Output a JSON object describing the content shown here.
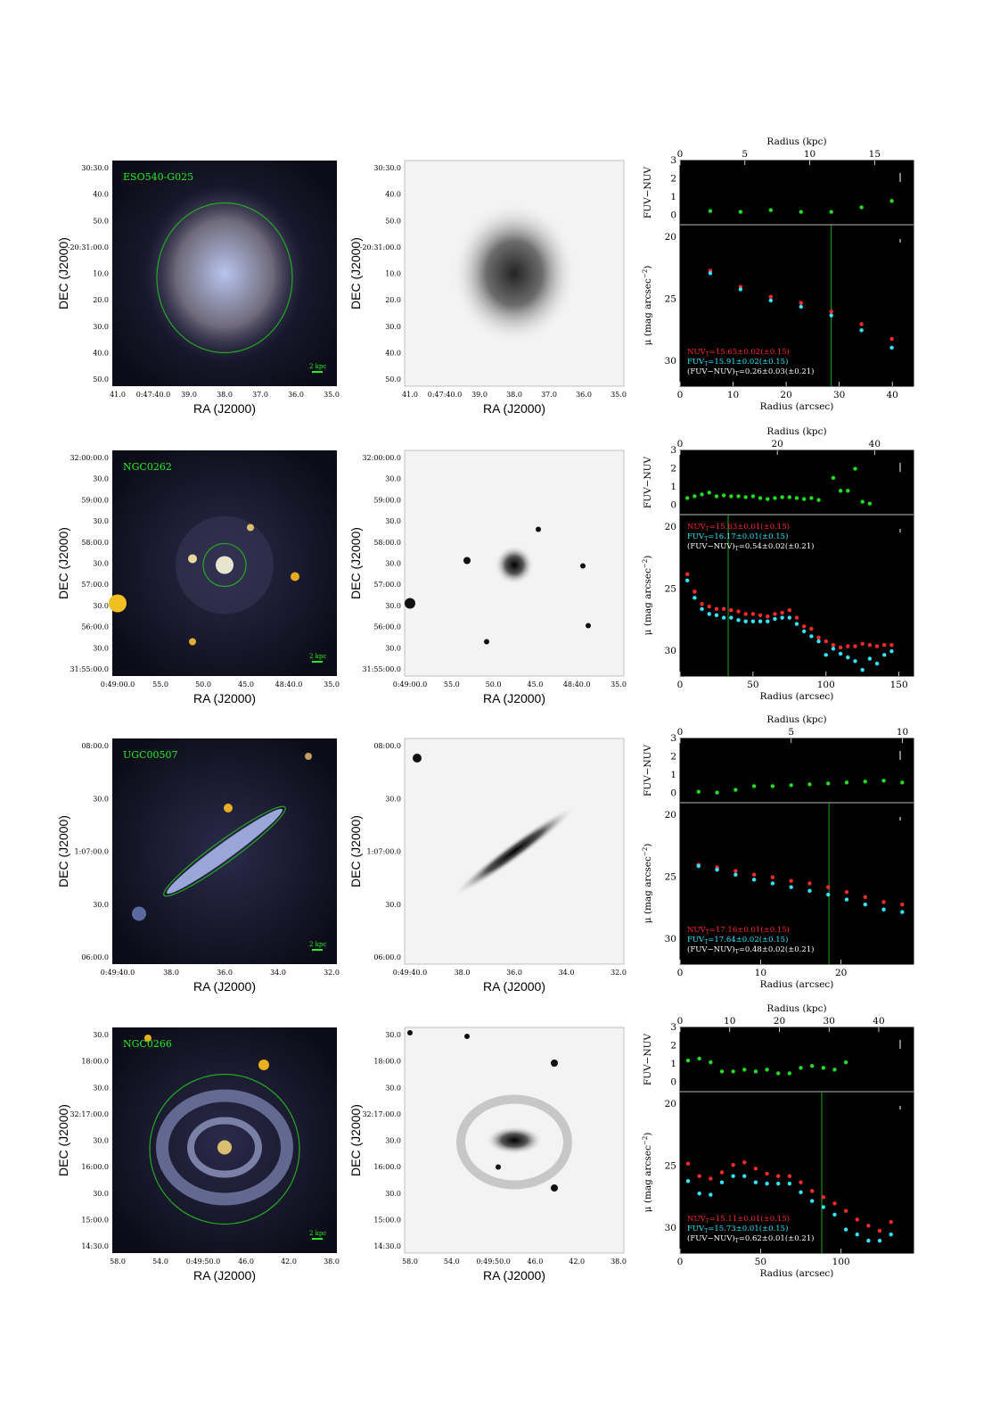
{
  "figure_axes": {
    "ra_label": "RA (J2000)",
    "dec_label": "DEC (J2000)",
    "radius_kpc_label": "Radius (kpc)",
    "radius_arcsec_label": "Radius (arcsec)",
    "color_label": "FUV−NUV",
    "mu_label_main": "μ (mag arcsec",
    "mu_label_sup": "−2",
    "mu_label_close": ")"
  },
  "colors": {
    "nuv": "#ff2a2a",
    "fuv": "#33e6ff",
    "color_pts": "#22dd22",
    "marker": "#22aa22",
    "galaxy_label": "#22ee22"
  },
  "icons": [
    "galaxy-image",
    "scale-bar-icon",
    "aperture-ellipse-icon"
  ],
  "galaxies": [
    {
      "name": "ESO540-G025",
      "scale_label": "2 kpc",
      "image_style": "spiral-faint",
      "ra_ticks": [
        "41.0",
        "0:47:40.0",
        "39.0",
        "38.0",
        "37.0",
        "36.0",
        "35.0"
      ],
      "dec_ticks": [
        "30:30.0",
        "40.0",
        "50.0",
        "-20:31:00.0",
        "10.0",
        "20.0",
        "30.0",
        "40.0",
        "50.0"
      ],
      "mono_dec_ticks": [
        "30:30.0",
        "40.0",
        "50.0",
        "-20:31:00.0",
        "10.0",
        "20.0",
        "30.0",
        "40.0",
        "50.0"
      ],
      "kpc_ticks": [
        "0",
        "5",
        "10",
        "15"
      ],
      "kpc_max": 18,
      "arcsec_ticks": [
        "0",
        "10",
        "20",
        "30",
        "40"
      ],
      "arcsec_max": 44,
      "color_ticks": [
        "0",
        "1",
        "2",
        "3"
      ],
      "mu_ticks": [
        "20",
        "25",
        "30"
      ],
      "marker_arcsec": 28.5,
      "legend": {
        "nuv_main": "NUV",
        "nuv_sub": "T",
        "nuv_val": "=15.65±0.02(±0.15)",
        "fuv_main": "FUV",
        "fuv_sub": "T",
        "fuv_val": "=15.91±0.02(±0.15)",
        "col_main": "(FUV−NUV)",
        "col_sub": "T",
        "col_val": "=0.26±0.03(±0.21)"
      },
      "chart_data": {
        "type": "scatter",
        "x_label_top": "Radius (kpc)",
        "x_label": "Radius (arcsec)",
        "color_series": {
          "name": "FUV−NUV",
          "x": [
            5.7,
            11.4,
            17.1,
            22.8,
            28.5,
            34.2,
            39.9
          ],
          "y": [
            0.25,
            0.2,
            0.3,
            0.2,
            0.2,
            0.45,
            0.8
          ]
        },
        "nuv_series": {
          "name": "NUV",
          "x": [
            5.7,
            11.4,
            17.1,
            22.8,
            28.5,
            34.2,
            39.9
          ],
          "y": [
            22.7,
            24.0,
            24.8,
            25.3,
            26.0,
            27.0,
            28.2
          ]
        },
        "fuv_series": {
          "name": "FUV",
          "x": [
            5.7,
            11.4,
            17.1,
            22.8,
            28.5,
            34.2,
            39.9
          ],
          "y": [
            22.9,
            24.2,
            25.1,
            25.6,
            26.3,
            27.5,
            28.9
          ]
        },
        "color_ylim": [
          -0.5,
          3
        ],
        "mu_ylim": [
          32,
          19
        ]
      }
    },
    {
      "name": "NGC0262",
      "scale_label": "2 kpc",
      "image_style": "compact-field",
      "ra_ticks": [
        "0:49:00.0",
        "55.0",
        "50.0",
        "45.0",
        "48:40.0",
        "35.0"
      ],
      "dec_ticks": [
        "32:00:00.0",
        "30.0",
        "59:00.0",
        "30.0",
        "58:00.0",
        "30.0",
        "57:00.0",
        "30.0",
        "56:00.0",
        "30.0",
        "31:55:00.0"
      ],
      "mono_dec_ticks": [
        "32:00:00.0",
        "30.0",
        "59:00.0",
        "30.0",
        "58:00.0",
        "30.0",
        "57:00.0",
        "30.0",
        "56:00.0",
        "30.0",
        "31:55:00.0"
      ],
      "kpc_ticks": [
        "0",
        "20",
        "40"
      ],
      "kpc_max": 48,
      "arcsec_ticks": [
        "0",
        "50",
        "100",
        "150"
      ],
      "arcsec_max": 160,
      "color_ticks": [
        "0",
        "1",
        "2",
        "3"
      ],
      "mu_ticks": [
        "20",
        "25",
        "30"
      ],
      "marker_arcsec": 33,
      "legend": {
        "nuv_main": "NUV",
        "nuv_sub": "T",
        "nuv_val": "=15.63±0.01(±0.15)",
        "fuv_main": "FUV",
        "fuv_sub": "T",
        "fuv_val": "=16.17±0.01(±0.15)",
        "col_main": "(FUV−NUV)",
        "col_sub": "T",
        "col_val": "=0.54±0.02(±0.21)"
      },
      "chart_data": {
        "type": "scatter",
        "x_label_top": "Radius (kpc)",
        "x_label": "Radius (arcsec)",
        "color_series": {
          "name": "FUV−NUV",
          "x": [
            5,
            10,
            15,
            20,
            25,
            30,
            35,
            40,
            45,
            50,
            55,
            60,
            65,
            70,
            75,
            80,
            85,
            90,
            95,
            105,
            110,
            115,
            120,
            125,
            130
          ],
          "y": [
            0.4,
            0.5,
            0.6,
            0.7,
            0.5,
            0.55,
            0.5,
            0.5,
            0.45,
            0.5,
            0.4,
            0.35,
            0.4,
            0.45,
            0.45,
            0.4,
            0.35,
            0.4,
            0.3,
            1.5,
            0.8,
            0.8,
            2.0,
            0.2,
            0.1
          ]
        },
        "nuv_series": {
          "name": "NUV",
          "x": [
            5,
            10,
            15,
            20,
            25,
            30,
            35,
            40,
            45,
            50,
            55,
            60,
            65,
            70,
            75,
            80,
            85,
            90,
            95,
            100,
            105,
            110,
            115,
            120,
            125,
            130,
            135,
            140,
            145
          ],
          "y": [
            23.8,
            25.2,
            26.2,
            26.4,
            26.6,
            26.6,
            26.7,
            26.8,
            27.0,
            27.0,
            27.1,
            27.2,
            27.0,
            26.9,
            26.7,
            27.3,
            28.0,
            28.2,
            28.9,
            29.2,
            29.5,
            29.7,
            29.6,
            29.6,
            29.4,
            29.5,
            29.6,
            29.5,
            29.5
          ]
        },
        "fuv_series": {
          "name": "FUV",
          "x": [
            5,
            10,
            15,
            20,
            25,
            30,
            35,
            40,
            45,
            50,
            55,
            60,
            65,
            70,
            75,
            80,
            85,
            90,
            95,
            100,
            105,
            110,
            115,
            120,
            125,
            130,
            135,
            140,
            145
          ],
          "y": [
            24.3,
            25.7,
            26.6,
            27.0,
            27.1,
            27.3,
            27.3,
            27.5,
            27.6,
            27.6,
            27.6,
            27.6,
            27.4,
            27.3,
            27.3,
            27.8,
            28.4,
            28.8,
            29.2,
            30.3,
            29.8,
            30.2,
            30.5,
            30.8,
            31.5,
            30.6,
            31.0,
            30.3,
            30.0
          ]
        },
        "color_ylim": [
          -0.5,
          3
        ],
        "mu_ylim": [
          32,
          19
        ]
      }
    },
    {
      "name": "UGC00507",
      "scale_label": "2 kpc",
      "image_style": "edge-on",
      "ra_ticks": [
        "0:49:40.0",
        "38.0",
        "36.0",
        "34.0",
        "32.0"
      ],
      "dec_ticks": [
        "08:00.0",
        "30.0",
        "1:07:00.0",
        "30.0",
        "06:00.0"
      ],
      "mono_dec_ticks": [
        "08:00.0",
        "30.0",
        "1:07:00.0",
        "30.0",
        "06:00.0"
      ],
      "kpc_ticks": [
        "0",
        "5",
        "10"
      ],
      "kpc_max": 10.5,
      "arcsec_ticks": [
        "0",
        "10",
        "20"
      ],
      "arcsec_max": 29,
      "color_ticks": [
        "0",
        "1",
        "2",
        "3"
      ],
      "mu_ticks": [
        "20",
        "25",
        "30"
      ],
      "marker_arcsec": 18.5,
      "legend": {
        "nuv_main": "NUV",
        "nuv_sub": "T",
        "nuv_val": "=17.16±0.01(±0.15)",
        "fuv_main": "FUV",
        "fuv_sub": "T",
        "fuv_val": "=17.64±0.02(±0.15)",
        "col_main": "(FUV−NUV)",
        "col_sub": "T",
        "col_val": "=0.48±0.02(±0.21)"
      },
      "chart_data": {
        "type": "scatter",
        "x_label_top": "Radius (kpc)",
        "x_label": "Radius (arcsec)",
        "color_series": {
          "name": "FUV−NUV",
          "x": [
            2.3,
            4.6,
            6.9,
            9.2,
            11.5,
            13.8,
            16.1,
            18.4,
            20.7,
            23.0,
            25.3,
            27.6
          ],
          "y": [
            0.1,
            0.05,
            0.2,
            0.4,
            0.4,
            0.45,
            0.5,
            0.55,
            0.6,
            0.65,
            0.7,
            0.6
          ]
        },
        "nuv_series": {
          "name": "NUV",
          "x": [
            2.3,
            4.6,
            6.9,
            9.2,
            11.5,
            13.8,
            16.1,
            18.4,
            20.7,
            23.0,
            25.3,
            27.6
          ],
          "y": [
            24.0,
            24.2,
            24.5,
            24.8,
            25.0,
            25.3,
            25.5,
            25.8,
            26.2,
            26.6,
            27.0,
            27.2
          ]
        },
        "fuv_series": {
          "name": "FUV",
          "x": [
            2.3,
            4.6,
            6.9,
            9.2,
            11.5,
            13.8,
            16.1,
            18.4,
            20.7,
            23.0,
            25.3,
            27.6
          ],
          "y": [
            24.1,
            24.4,
            24.8,
            25.2,
            25.5,
            25.8,
            26.1,
            26.4,
            26.8,
            27.2,
            27.6,
            27.8
          ]
        },
        "color_ylim": [
          -0.5,
          3
        ],
        "mu_ylim": [
          32,
          19
        ]
      }
    },
    {
      "name": "NGC0266",
      "scale_label": "2 kpc",
      "image_style": "grand-spiral",
      "ra_ticks": [
        "58.0",
        "54.0",
        "0:49:50.0",
        "46.0",
        "42.0",
        "38.0"
      ],
      "dec_ticks": [
        "30.0",
        "18:00.0",
        "30.0",
        "32:17:00.0",
        "30.0",
        "16:00.0",
        "30.0",
        "15:00.0",
        "14:30.0"
      ],
      "mono_dec_ticks": [
        "30.0",
        "18:00.0",
        "30.0",
        "32:17:00.0",
        "30.0",
        "16:00.0",
        "30.0",
        "15:00.0",
        "14:30.0"
      ],
      "kpc_ticks": [
        "0",
        "10",
        "20",
        "30",
        "40"
      ],
      "kpc_max": 47,
      "arcsec_ticks": [
        "0",
        "50",
        "100"
      ],
      "arcsec_max": 145,
      "color_ticks": [
        "0",
        "1",
        "2",
        "3"
      ],
      "mu_ticks": [
        "20",
        "25",
        "30"
      ],
      "marker_arcsec": 88,
      "legend": {
        "nuv_main": "NUV",
        "nuv_sub": "T",
        "nuv_val": "=15.11±0.01(±0.15)",
        "fuv_main": "FUV",
        "fuv_sub": "T",
        "fuv_val": "=15.73±0.01(±0.15)",
        "col_main": "(FUV−NUV)",
        "col_sub": "T",
        "col_val": "=0.62±0.01(±0.21)"
      },
      "chart_data": {
        "type": "scatter",
        "x_label_top": "Radius (kpc)",
        "x_label": "Radius (arcsec)",
        "color_series": {
          "name": "FUV−NUV",
          "x": [
            5,
            12,
            19,
            26,
            33,
            40,
            47,
            54,
            61,
            68,
            75,
            82,
            89,
            96,
            103
          ],
          "y": [
            1.2,
            1.3,
            1.1,
            0.6,
            0.6,
            0.7,
            0.6,
            0.7,
            0.5,
            0.5,
            0.8,
            0.9,
            0.8,
            0.7,
            1.1
          ]
        },
        "nuv_series": {
          "name": "NUV",
          "x": [
            5,
            12,
            19,
            26,
            33,
            40,
            47,
            54,
            61,
            68,
            75,
            82,
            89,
            96,
            103,
            110,
            117,
            124,
            131
          ],
          "y": [
            24.8,
            25.8,
            26.0,
            25.5,
            24.9,
            24.7,
            25.2,
            25.6,
            25.8,
            25.8,
            26.3,
            27.0,
            27.5,
            28.0,
            28.6,
            29.3,
            29.8,
            30.2,
            29.5
          ]
        },
        "fuv_series": {
          "name": "FUV",
          "x": [
            5,
            12,
            19,
            26,
            33,
            40,
            47,
            54,
            61,
            68,
            75,
            82,
            89,
            96,
            103,
            110,
            117,
            124,
            131
          ],
          "y": [
            26.2,
            27.2,
            27.3,
            26.3,
            25.8,
            25.8,
            26.3,
            26.4,
            26.4,
            26.4,
            27.1,
            27.8,
            28.3,
            28.9,
            30.1,
            30.5,
            31.0,
            31.0,
            30.5
          ]
        },
        "color_ylim": [
          -0.5,
          3
        ],
        "mu_ylim": [
          32,
          19
        ]
      }
    }
  ]
}
